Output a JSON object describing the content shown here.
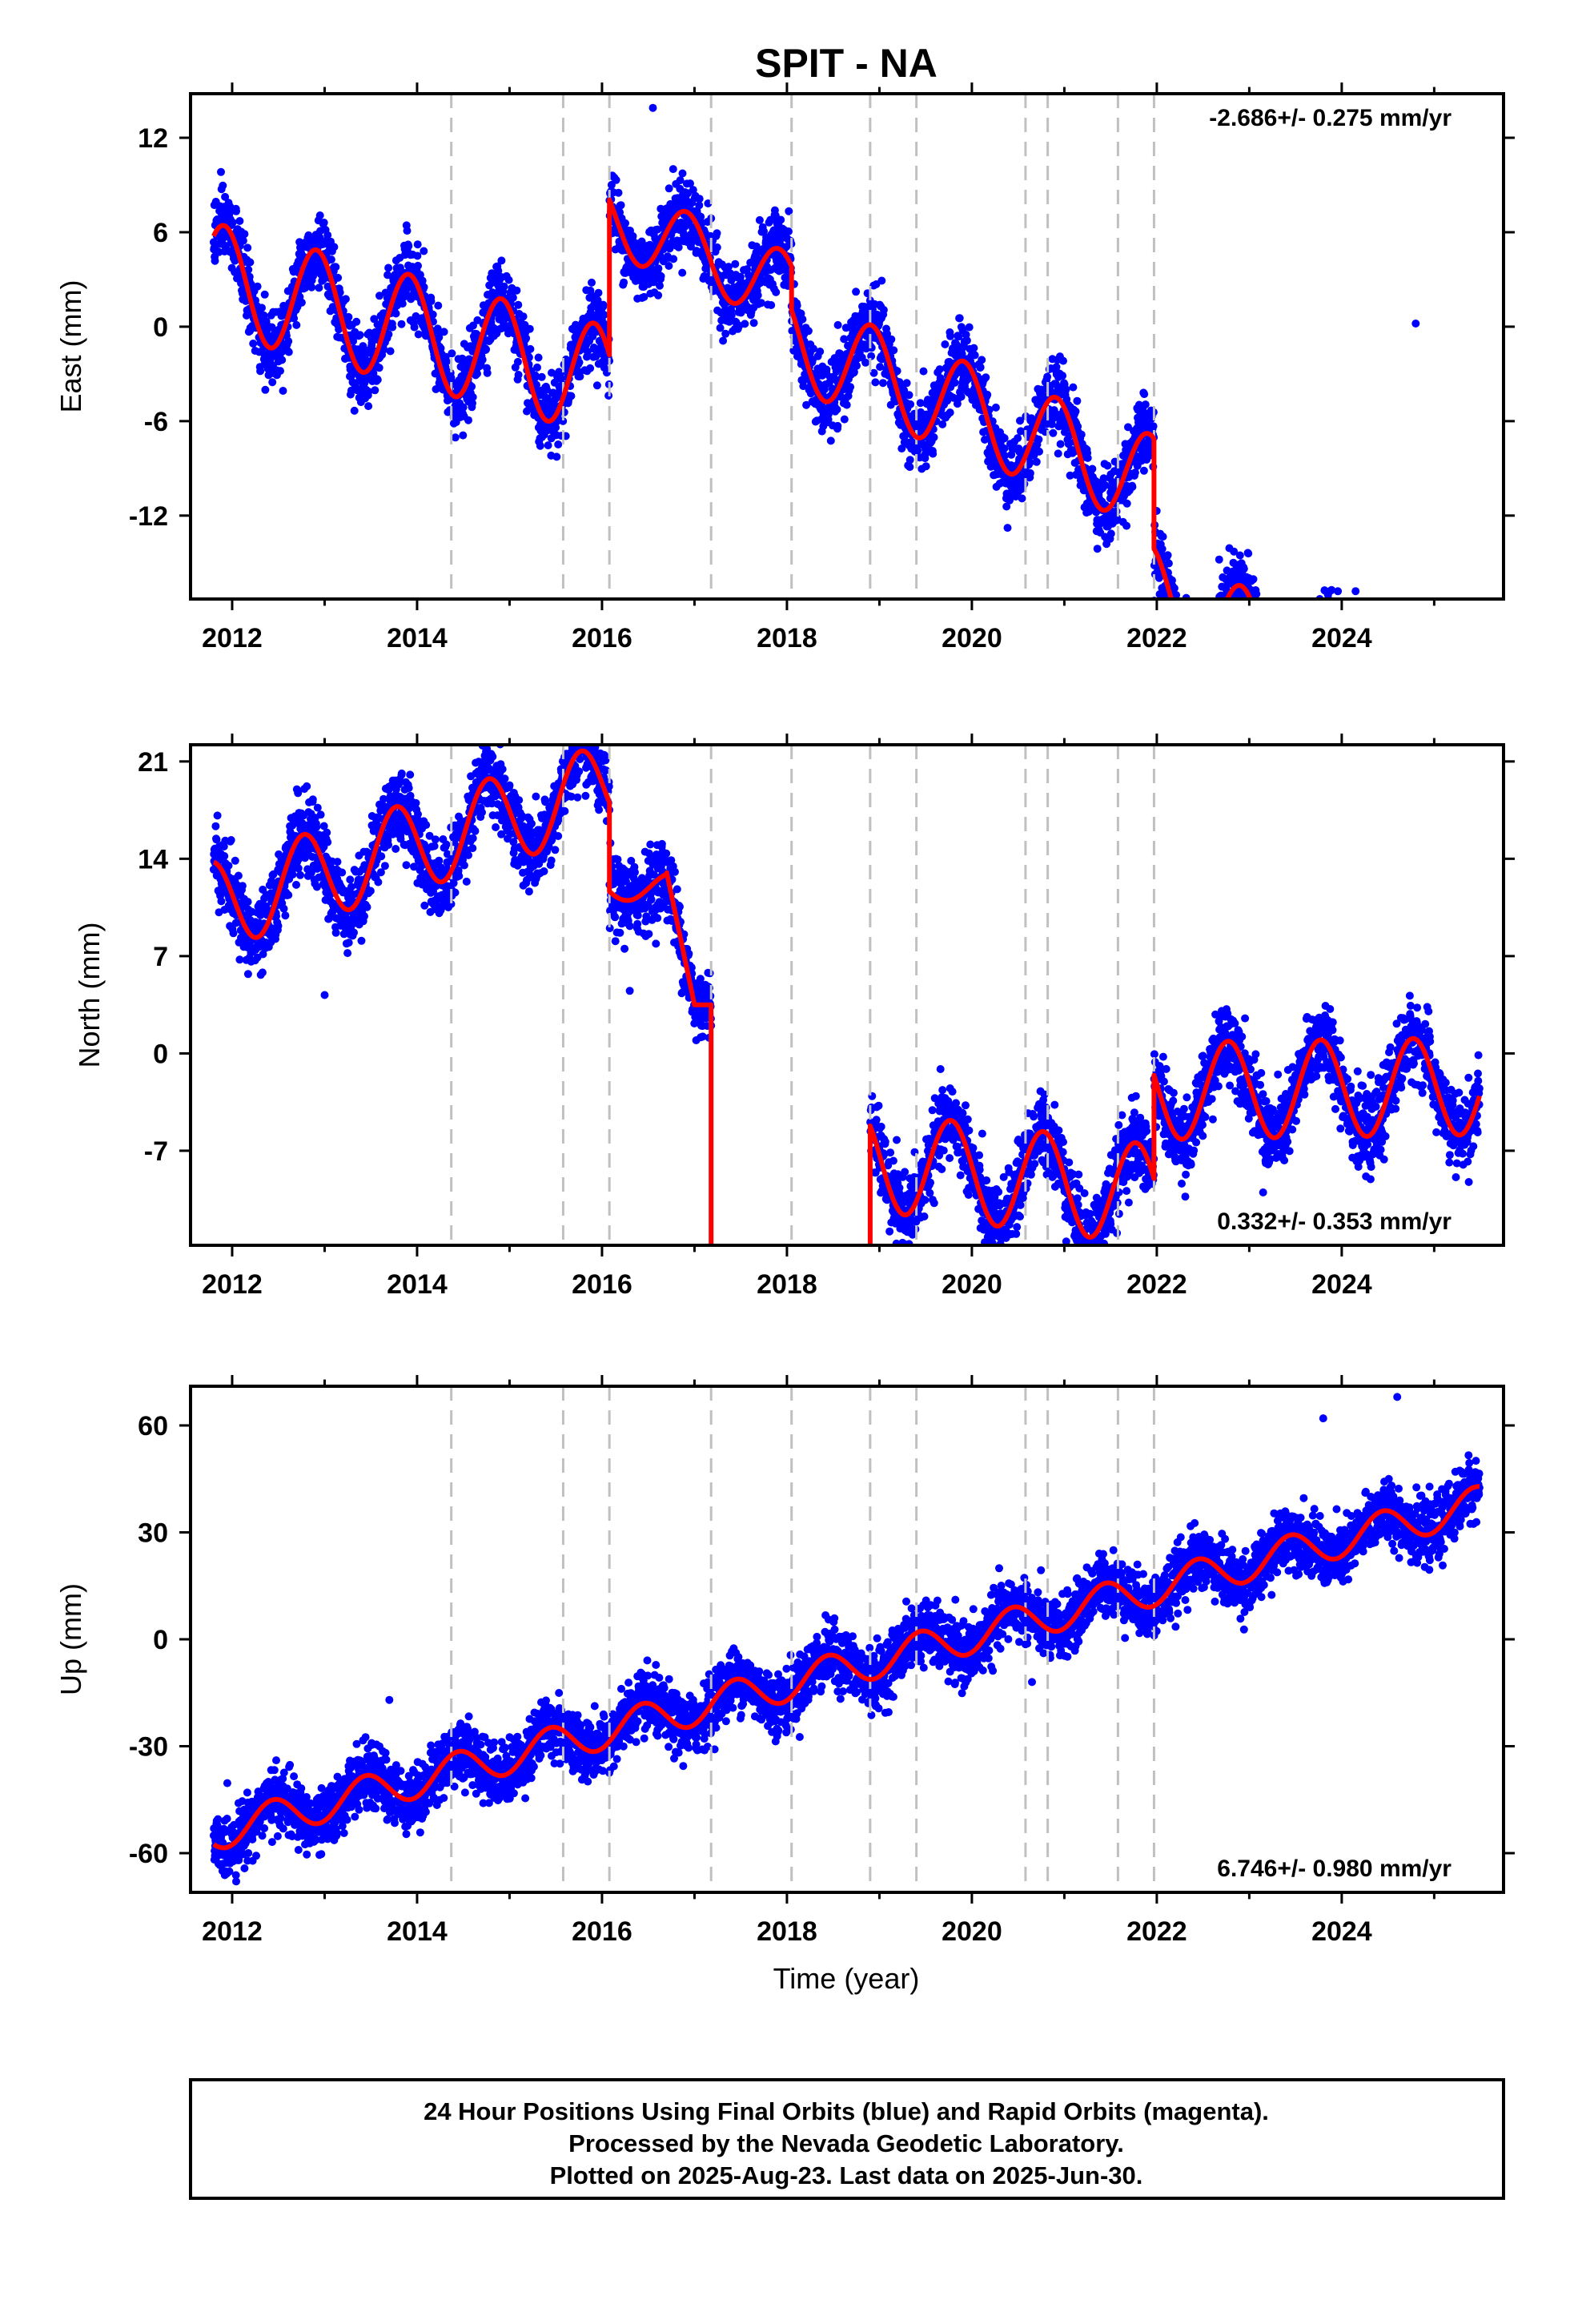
{
  "chart_data": {
    "type": "scatter",
    "title": "SPIT - NA",
    "xlabel": "Time (year)",
    "xlim": [
      2011.55,
      2025.75
    ],
    "x_ticks": [
      2012,
      2014,
      2016,
      2018,
      2020,
      2022,
      2024
    ],
    "x_tick_labels": [
      "2012",
      "2014",
      "2016",
      "2018",
      "2020",
      "2022",
      "2024"
    ],
    "data_start": 2011.8,
    "data_end": 2025.49,
    "grid": false,
    "equipment_change_lines": [
      2014.37,
      2015.58,
      2016.08,
      2017.18,
      2018.05,
      2018.9,
      2019.4,
      2020.58,
      2020.82,
      2021.58,
      2021.97
    ],
    "colors": {
      "final_orbits": "#0000ff",
      "model_fit": "#ff0000",
      "event_lines": "#c0c0c0"
    },
    "panels": [
      {
        "name": "east",
        "ylabel": "East (mm)",
        "ylim": [
          -17.3,
          14.8
        ],
        "y_ticks": [
          12,
          6,
          0,
          -6,
          -12
        ],
        "y_tick_labels": [
          "12",
          "6",
          "0",
          "-6",
          "-12"
        ],
        "rate_label": "-2.686+/- 0.275 mm/yr",
        "rate_position": "top-right",
        "outliers": [
          [
            2016.55,
            13.9
          ],
          [
            2024.15,
            -16.8
          ],
          [
            2024.8,
            0.2
          ]
        ],
        "fit_segments": [
          {
            "t0": 2011.8,
            "t1": 2016.08,
            "offset": 2.79,
            "trend": -1.55,
            "amp": 3.5,
            "phase": 2.12
          },
          {
            "t0": 2016.08,
            "t1": 2017.18,
            "offset": 16.3,
            "trend": -2.3,
            "amp": 2.3,
            "phase": 2.12
          },
          {
            "t0": 2017.18,
            "t1": 2018.05,
            "offset": 16.25,
            "trend": -2.3,
            "amp": 2.3,
            "phase": 2.12
          },
          {
            "t0": 2018.05,
            "t1": 2021.97,
            "offset": 13.0,
            "trend": -2.3,
            "amp": 3.0,
            "phase": 2.12
          },
          {
            "t0": 2021.97,
            "t1": 2025.49,
            "offset": 10.0,
            "trend": -2.7,
            "amp": 3.0,
            "phase": 2.12
          }
        ]
      },
      {
        "name": "north",
        "ylabel": "North (mm)",
        "ylim": [
          -13.8,
          22.2
        ],
        "y_ticks": [
          21,
          14,
          7,
          0,
          -7
        ],
        "y_tick_labels": [
          "21",
          "14",
          "7",
          "0",
          "-7"
        ],
        "rate_label": "0.332+/- 0.353 mm/yr",
        "rate_position": "bottom-right",
        "outliers": [
          [
            2013.0,
            4.2
          ],
          [
            2016.3,
            4.5
          ],
          [
            2012.7,
            19.0
          ],
          [
            2023.15,
            -10.0
          ]
        ],
        "fit_segments": [
          {
            "t0": 2011.8,
            "t1": 2016.08,
            "offset": 11.0,
            "trend": 2.0,
            "amp": 3.2,
            "phase": 3.0
          },
          {
            "t0": 2016.08,
            "t1": 2016.7,
            "offset": 12.0,
            "trend": 0.0,
            "amp": 1.0,
            "phase": 3.0
          },
          {
            "t0": 2016.7,
            "t1": 2017.0,
            "ramp": [
              13.0,
              3.5
            ]
          },
          {
            "t0": 2017.0,
            "t1": 2017.18,
            "offset": 3.5,
            "trend": 0.0,
            "amp": 0.0,
            "phase": 3.0
          },
          {
            "t0": 2017.18,
            "t1": 2018.05,
            "offset": 1.5,
            "trend": -4.0,
            "amp": 2.5,
            "phase": 3.0
          },
          {
            "t0": 2018.05,
            "t1": 2018.9,
            "offset": -1.2,
            "trend": -3.0,
            "amp": 2.5,
            "phase": 3.0
          },
          {
            "t0": 2018.9,
            "t1": 2021.97,
            "offset": -2.2,
            "trend": -0.8,
            "amp": 3.6,
            "phase": 3.0
          },
          {
            "t0": 2021.97,
            "t1": 2025.49,
            "offset": -3.7,
            "trend": 0.1,
            "amp": 3.5,
            "phase": 3.0
          }
        ]
      },
      {
        "name": "up",
        "ylabel": "Up (mm)",
        "ylim": [
          -71.0,
          71.0
        ],
        "y_ticks": [
          60,
          30,
          0,
          -30,
          -60
        ],
        "y_tick_labels": [
          "60",
          "30",
          "0",
          "-30",
          "-60"
        ],
        "rate_label": "6.746+/- 0.980 mm/yr",
        "rate_position": "bottom-right",
        "outliers": [
          [
            2013.7,
            -17.0
          ],
          [
            2024.6,
            68.0
          ],
          [
            2020.65,
            -12.0
          ],
          [
            2023.8,
            62.0
          ]
        ],
        "fit_segments": [
          {
            "t0": 2011.8,
            "t1": 2025.49,
            "offset": -53.0,
            "trend": 6.75,
            "amp": 5.0,
            "phase": -1.2
          }
        ]
      }
    ],
    "footer_lines": [
      "24 Hour Positions Using Final Orbits (blue) and Rapid Orbits (magenta).",
      "Processed by the Nevada Geodetic Laboratory.",
      "Plotted on 2025-Aug-23. Last data on 2025-Jun-30."
    ]
  }
}
